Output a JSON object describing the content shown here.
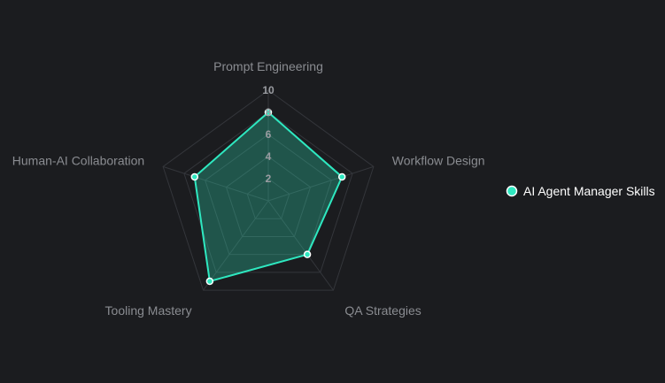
{
  "chart_data": {
    "type": "radar",
    "categories": [
      "Prompt Engineering",
      "Workflow Design",
      "QA Strategies",
      "Tooling Mastery",
      "Human-AI Collaboration"
    ],
    "series": [
      {
        "name": "AI Agent Manager Skills",
        "values": [
          8,
          7,
          6,
          9,
          7
        ],
        "color": "#2ee8c0"
      }
    ],
    "r_range": [
      0,
      10
    ],
    "ticks": [
      "2",
      "4",
      "6",
      "8",
      "10"
    ],
    "grid": true,
    "legend_position": "right"
  },
  "colors": {
    "background": "#1b1c1f",
    "grid": "#34363b",
    "series_fill": "rgba(46, 232, 192, 0.28)"
  }
}
